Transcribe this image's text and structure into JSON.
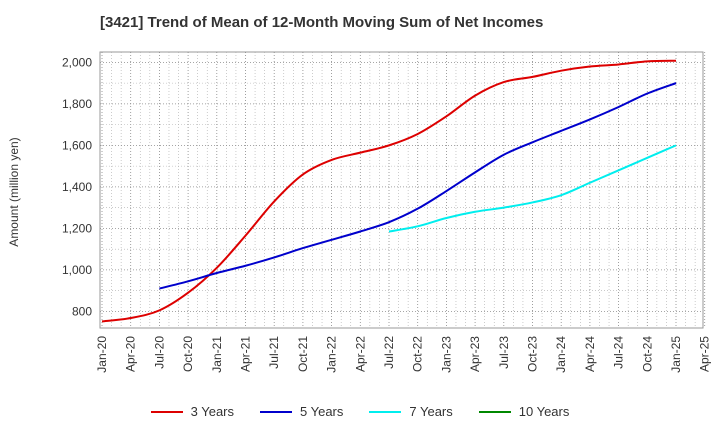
{
  "title": "[3421]  Trend of Mean of 12-Month Moving Sum of Net Incomes",
  "chart_data": {
    "type": "line",
    "title": "[3421]  Trend of Mean of 12-Month Moving Sum of Net Incomes",
    "ylabel": "Amount (million yen)",
    "xlabel": "",
    "ylim": [
      720,
      2050
    ],
    "yticks": [
      800,
      1000,
      1200,
      1400,
      1600,
      1800,
      2000
    ],
    "ytick_labels": [
      "800",
      "1,000",
      "1,200",
      "1,400",
      "1,600",
      "1,800",
      "2,000"
    ],
    "xticks": [
      "Jan-20",
      "Apr-20",
      "Jul-20",
      "Oct-20",
      "Jan-21",
      "Apr-21",
      "Jul-21",
      "Oct-21",
      "Jan-22",
      "Apr-22",
      "Jul-22",
      "Oct-22",
      "Jan-23",
      "Apr-23",
      "Jul-23",
      "Oct-23",
      "Jan-24",
      "Apr-24",
      "Jul-24",
      "Oct-24",
      "Jan-25",
      "Apr-25"
    ],
    "grid": true,
    "legend_position": "bottom",
    "series": [
      {
        "name": "3 Years",
        "color": "#dd0000",
        "points": [
          [
            "Jan-20",
            752
          ],
          [
            "Apr-20",
            768
          ],
          [
            "Jul-20",
            805
          ],
          [
            "Oct-20",
            890
          ],
          [
            "Jan-21",
            1010
          ],
          [
            "Apr-21",
            1165
          ],
          [
            "Jul-21",
            1330
          ],
          [
            "Oct-21",
            1460
          ],
          [
            "Jan-22",
            1530
          ],
          [
            "Apr-22",
            1565
          ],
          [
            "Jul-22",
            1600
          ],
          [
            "Oct-22",
            1655
          ],
          [
            "Jan-23",
            1740
          ],
          [
            "Apr-23",
            1840
          ],
          [
            "Jul-23",
            1905
          ],
          [
            "Oct-23",
            1930
          ],
          [
            "Jan-24",
            1960
          ],
          [
            "Apr-24",
            1980
          ],
          [
            "Jul-24",
            1990
          ],
          [
            "Oct-24",
            2005
          ],
          [
            "Jan-25",
            2008
          ]
        ]
      },
      {
        "name": "5 Years",
        "color": "#0000cc",
        "points": [
          [
            "Jul-20",
            910
          ],
          [
            "Oct-20",
            945
          ],
          [
            "Jan-21",
            985
          ],
          [
            "Apr-21",
            1020
          ],
          [
            "Jul-21",
            1060
          ],
          [
            "Oct-21",
            1105
          ],
          [
            "Jan-22",
            1145
          ],
          [
            "Apr-22",
            1185
          ],
          [
            "Jul-22",
            1230
          ],
          [
            "Oct-22",
            1295
          ],
          [
            "Jan-23",
            1380
          ],
          [
            "Apr-23",
            1470
          ],
          [
            "Jul-23",
            1555
          ],
          [
            "Oct-23",
            1615
          ],
          [
            "Jan-24",
            1670
          ],
          [
            "Apr-24",
            1725
          ],
          [
            "Jul-24",
            1785
          ],
          [
            "Oct-24",
            1850
          ],
          [
            "Jan-25",
            1900
          ]
        ]
      },
      {
        "name": "7 Years",
        "color": "#00eeee",
        "points": [
          [
            "Jul-22",
            1185
          ],
          [
            "Oct-22",
            1210
          ],
          [
            "Jan-23",
            1250
          ],
          [
            "Apr-23",
            1280
          ],
          [
            "Jul-23",
            1300
          ],
          [
            "Oct-23",
            1325
          ],
          [
            "Jan-24",
            1360
          ],
          [
            "Apr-24",
            1420
          ],
          [
            "Jul-24",
            1480
          ],
          [
            "Oct-24",
            1540
          ],
          [
            "Jan-25",
            1600
          ]
        ]
      },
      {
        "name": "10 Years",
        "color": "#008800",
        "points": []
      }
    ]
  }
}
